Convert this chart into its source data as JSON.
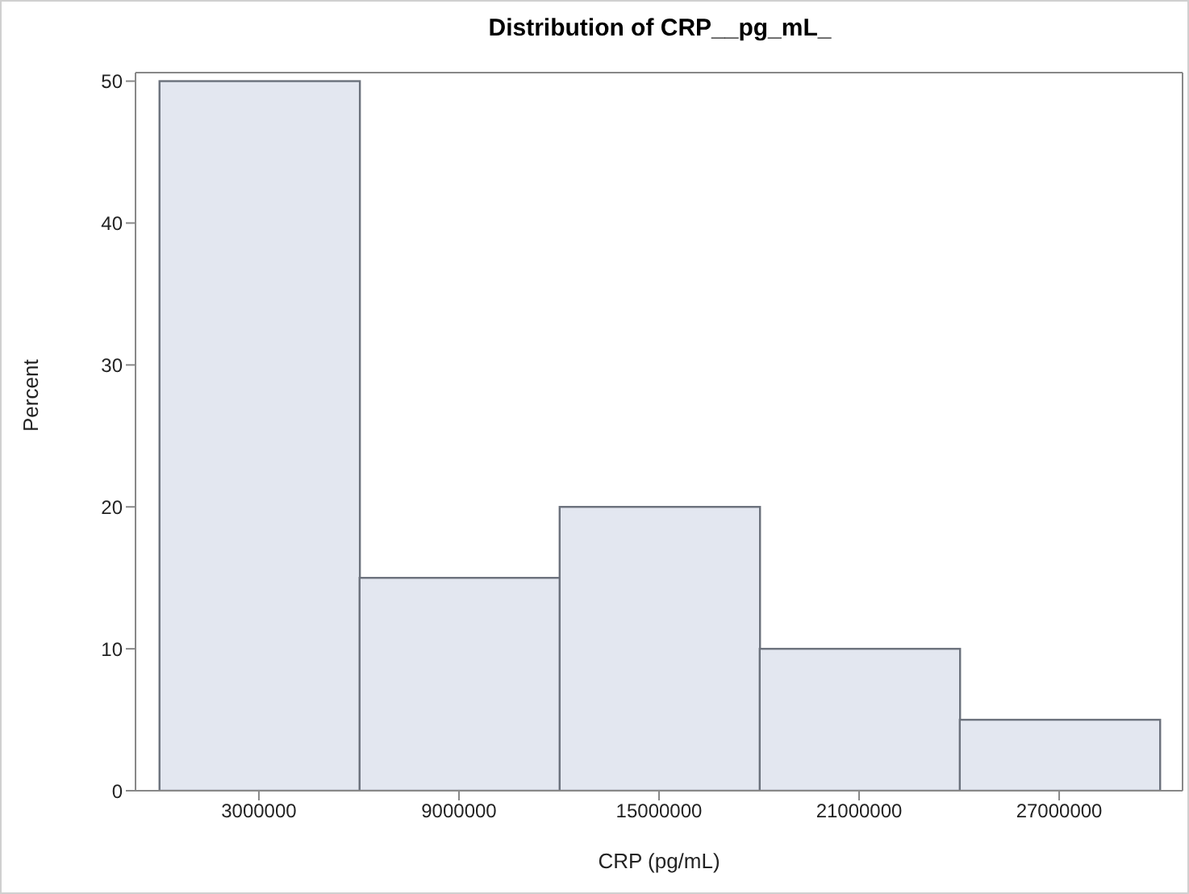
{
  "chart_data": {
    "type": "histogram",
    "title": "Distribution of CRP__pg_mL_",
    "xlabel": "CRP (pg/mL)",
    "ylabel": "Percent",
    "bins": [
      0,
      6000000,
      12000000,
      18000000,
      24000000,
      30000000
    ],
    "values": [
      50,
      15,
      20,
      10,
      5
    ],
    "color": "#e3e7f0",
    "xlim": [
      -700000,
      30700000
    ],
    "xticks": [
      3000000,
      9000000,
      15000000,
      21000000,
      27000000
    ],
    "ylim": [
      0,
      50.6
    ],
    "yticks": [
      0,
      10,
      20,
      30,
      40,
      50
    ],
    "grid": false,
    "legend": false
  }
}
